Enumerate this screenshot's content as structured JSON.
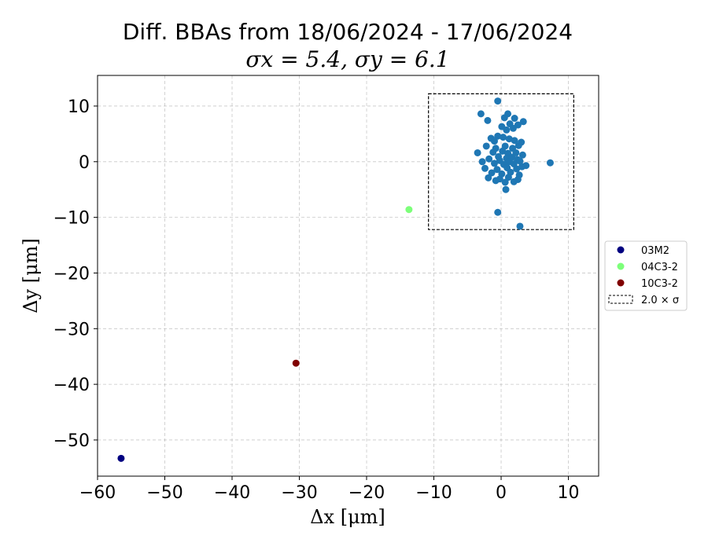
{
  "chart_data": {
    "type": "scatter",
    "title": "Diff. BBAs from 18/06/2024 - 17/06/2024",
    "subtitle": "σx = 5.4,  σy = 6.1",
    "xlabel": "Δx [μm]",
    "ylabel": "Δy [μm]",
    "xlim": [
      -60,
      14.5
    ],
    "ylim": [
      -56.5,
      15.5
    ],
    "xticks": [
      -60,
      -50,
      -40,
      -30,
      -20,
      -10,
      0,
      10
    ],
    "yticks": [
      -50,
      -40,
      -30,
      -20,
      -10,
      0,
      10
    ],
    "grid": true,
    "legend_position": "center-right",
    "series": [
      {
        "color": "#1f77b4",
        "points": [
          [
            -0.5,
            10.9
          ],
          [
            -3.0,
            8.6
          ],
          [
            -2.0,
            7.4
          ],
          [
            1.0,
            8.6
          ],
          [
            2.0,
            7.8
          ],
          [
            0.5,
            7.9
          ],
          [
            1.3,
            6.8
          ],
          [
            2.5,
            6.6
          ],
          [
            3.3,
            7.2
          ],
          [
            0.1,
            6.3
          ],
          [
            1.8,
            6.0
          ],
          [
            0.8,
            5.7
          ],
          [
            -1.5,
            4.2
          ],
          [
            -0.5,
            4.6
          ],
          [
            -1.0,
            3.7
          ],
          [
            0.3,
            4.4
          ],
          [
            1.2,
            4.1
          ],
          [
            2.0,
            3.8
          ],
          [
            3.0,
            3.5
          ],
          [
            -2.2,
            2.8
          ],
          [
            -0.8,
            2.4
          ],
          [
            0.6,
            2.8
          ],
          [
            1.7,
            2.4
          ],
          [
            2.6,
            2.9
          ],
          [
            -1.2,
            1.7
          ],
          [
            0.2,
            1.9
          ],
          [
            1.0,
            1.5
          ],
          [
            2.2,
            1.6
          ],
          [
            3.2,
            1.2
          ],
          [
            -3.5,
            1.6
          ],
          [
            -0.4,
            0.9
          ],
          [
            0.8,
            0.6
          ],
          [
            1.6,
            0.8
          ],
          [
            2.4,
            0.4
          ],
          [
            -1.8,
            0.5
          ],
          [
            -0.2,
            0.2
          ],
          [
            1.2,
            0.0
          ],
          [
            2.8,
            0.1
          ],
          [
            -2.8,
            0.0
          ],
          [
            -1.0,
            -0.3
          ],
          [
            0.4,
            -0.5
          ],
          [
            1.9,
            -0.4
          ],
          [
            3.1,
            -0.9
          ],
          [
            3.7,
            -0.7
          ],
          [
            -2.4,
            -1.2
          ],
          [
            -0.6,
            -1.4
          ],
          [
            0.9,
            -1.1
          ],
          [
            2.3,
            -1.3
          ],
          [
            -1.4,
            -2.0
          ],
          [
            0.1,
            -2.2
          ],
          [
            1.4,
            -1.9
          ],
          [
            2.7,
            -2.4
          ],
          [
            -1.9,
            -2.9
          ],
          [
            -0.2,
            -3.1
          ],
          [
            1.1,
            -2.8
          ],
          [
            2.5,
            -3.2
          ],
          [
            -0.8,
            -3.4
          ],
          [
            0.6,
            -3.7
          ],
          [
            1.9,
            -3.6
          ],
          [
            0.7,
            -5.0
          ],
          [
            -0.5,
            -9.1
          ],
          [
            2.8,
            -11.6
          ],
          [
            7.3,
            -0.2
          ]
        ]
      },
      {
        "name": "03M2",
        "color": "#000080",
        "points": [
          [
            -56.5,
            -53.3
          ]
        ]
      },
      {
        "name": "04C3-2",
        "color": "#7dff7a",
        "points": [
          [
            -13.7,
            -8.6
          ]
        ]
      },
      {
        "name": "10C3-2",
        "color": "#800000",
        "points": [
          [
            -30.5,
            -36.2
          ]
        ]
      }
    ],
    "sigma_box": {
      "label": "2.0 × σ",
      "x_range": [
        -10.8,
        10.8
      ],
      "y_range": [
        -12.2,
        12.2
      ]
    },
    "legend": [
      {
        "label": "03M2",
        "marker": "dot",
        "color": "#000080"
      },
      {
        "label": "04C3-2",
        "marker": "dot",
        "color": "#7dff7a"
      },
      {
        "label": "10C3-2",
        "marker": "dot",
        "color": "#800000"
      },
      {
        "label": "2.0 × σ",
        "marker": "dashed-box",
        "color": "#000000"
      }
    ]
  }
}
